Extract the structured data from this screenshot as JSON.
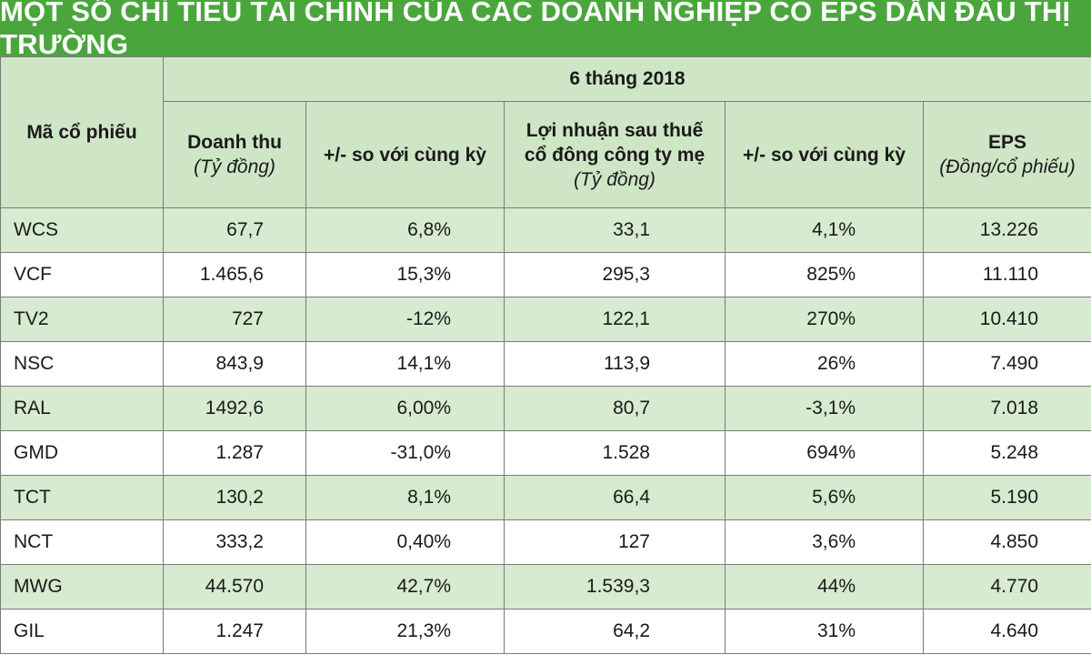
{
  "title": "MỘT SỐ CHỈ TIÊU TÀI CHÍNH CỦA CÁC DOANH NGHIỆP CÓ EPS DẪN ĐẦU THỊ TRƯỜNG",
  "colors": {
    "title_bg": "#4aa63c",
    "header_bg": "#cfe6c6",
    "row_alt_bg": "#d6ebcf"
  },
  "table": {
    "code_header": "Mã cổ phiếu",
    "period": "6 tháng 2018",
    "columns": [
      {
        "main": "Doanh thu",
        "main2": "",
        "unit": "(Tỷ đồng)"
      },
      {
        "main": "+/- so với cùng kỳ",
        "main2": "",
        "unit": ""
      },
      {
        "main": "Lợi nhuận sau thuế",
        "main2": "cổ đông công ty mẹ",
        "unit": "(Tỷ đồng)"
      },
      {
        "main": "+/- so với cùng kỳ",
        "main2": "",
        "unit": ""
      },
      {
        "main": "EPS",
        "main2": "",
        "unit": "(Đồng/cổ phiếu)"
      }
    ],
    "rows": [
      [
        "WCS",
        "67,7",
        "6,8%",
        "33,1",
        "4,1%",
        "13.226"
      ],
      [
        "VCF",
        "1.465,6",
        "15,3%",
        "295,3",
        "825%",
        "11.110"
      ],
      [
        "TV2",
        "727",
        "-12%",
        "122,1",
        "270%",
        "10.410"
      ],
      [
        "NSC",
        "843,9",
        "14,1%",
        "113,9",
        "26%",
        "7.490"
      ],
      [
        "RAL",
        "1492,6",
        "6,00%",
        "80,7",
        "-3,1%",
        "7.018"
      ],
      [
        "GMD",
        "1.287",
        "-31,0%",
        "1.528",
        "694%",
        "5.248"
      ],
      [
        "TCT",
        "130,2",
        "8,1%",
        "66,4",
        "5,6%",
        "5.190"
      ],
      [
        "NCT",
        "333,2",
        "0,40%",
        "127",
        "3,6%",
        "4.850"
      ],
      [
        "MWG",
        "44.570",
        "42,7%",
        "1.539,3",
        "44%",
        "4.770"
      ],
      [
        "GIL",
        "1.247",
        "21,3%",
        "64,2",
        "31%",
        "4.640"
      ]
    ]
  }
}
